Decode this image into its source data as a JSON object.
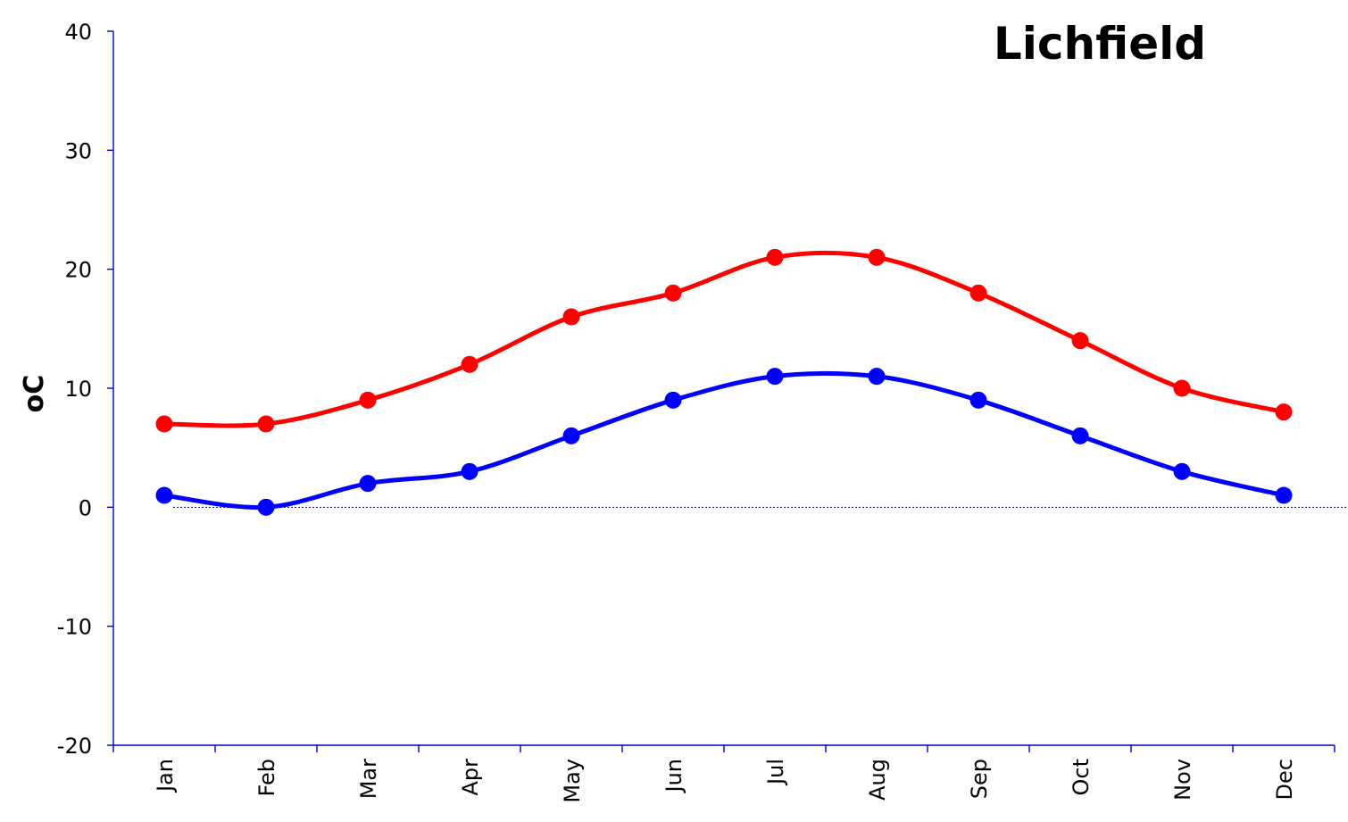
{
  "chart_data": {
    "type": "line",
    "title": "Lichfield",
    "ylabel": "oC",
    "xlabel": "",
    "categories": [
      "Jan",
      "Feb",
      "Mar",
      "Apr",
      "May",
      "Jun",
      "Jul",
      "Aug",
      "Sep",
      "Oct",
      "Nov",
      "Dec"
    ],
    "ylim": [
      -20,
      40
    ],
    "yticks": [
      40,
      30,
      20,
      10,
      0,
      -10,
      -20
    ],
    "grid": false,
    "legend": "none",
    "zero_line": true,
    "series": [
      {
        "color": "#ff0000",
        "values": [
          7,
          7,
          9,
          12,
          16,
          18,
          21,
          21,
          18,
          14,
          10,
          8
        ]
      },
      {
        "color": "#0000ff",
        "values": [
          1,
          0,
          2,
          3,
          6,
          9,
          11,
          11,
          9,
          6,
          3,
          1
        ]
      }
    ]
  }
}
